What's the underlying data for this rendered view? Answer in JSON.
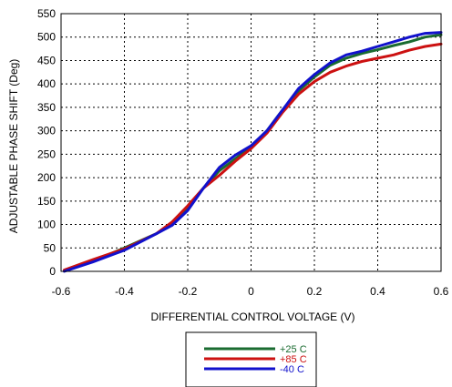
{
  "chart_data": {
    "type": "line",
    "title": "",
    "xlabel": "DIFFERENTIAL CONTROL VOLTAGE (V)",
    "ylabel": "ADJUSTABLE PHASE SHIFT (Deg)",
    "xlim": [
      -0.6,
      0.6
    ],
    "ylim": [
      0,
      550
    ],
    "xticks": [
      -0.6,
      -0.4,
      -0.2,
      0,
      0.2,
      0.4,
      0.6
    ],
    "xtick_labels": [
      "-0.6",
      "-0.4",
      "-0.2",
      "0",
      "0.2",
      "0.4",
      "0.6"
    ],
    "yticks": [
      0,
      50,
      100,
      150,
      200,
      250,
      300,
      350,
      400,
      450,
      500,
      550
    ],
    "ytick_labels": [
      "0",
      "50",
      "100",
      "150",
      "200",
      "250",
      "300",
      "350",
      "400",
      "450",
      "500",
      "550"
    ],
    "grid": "dotted",
    "legend_position": "bottom-center",
    "series": [
      {
        "name": "+25 C",
        "color": "#1a6b30",
        "x": [
          -0.59,
          -0.5,
          -0.4,
          -0.3,
          -0.25,
          -0.2,
          -0.15,
          -0.1,
          -0.05,
          0,
          0.05,
          0.1,
          0.15,
          0.2,
          0.25,
          0.3,
          0.35,
          0.4,
          0.45,
          0.5,
          0.55,
          0.6
        ],
        "y": [
          2,
          22,
          50,
          80,
          100,
          137,
          178,
          215,
          240,
          265,
          300,
          345,
          385,
          415,
          440,
          455,
          465,
          473,
          482,
          490,
          500,
          505
        ]
      },
      {
        "name": "+85 C",
        "color": "#cc1111",
        "x": [
          -0.59,
          -0.5,
          -0.4,
          -0.3,
          -0.25,
          -0.2,
          -0.15,
          -0.1,
          -0.05,
          0,
          0.05,
          0.1,
          0.15,
          0.2,
          0.25,
          0.3,
          0.35,
          0.4,
          0.45,
          0.5,
          0.55,
          0.6
        ],
        "y": [
          3,
          25,
          48,
          80,
          105,
          140,
          178,
          205,
          235,
          262,
          295,
          340,
          378,
          405,
          425,
          438,
          448,
          455,
          462,
          472,
          480,
          485
        ]
      },
      {
        "name": "-40 C",
        "color": "#1111cc",
        "x": [
          -0.59,
          -0.5,
          -0.4,
          -0.3,
          -0.25,
          -0.2,
          -0.15,
          -0.1,
          -0.05,
          0,
          0.05,
          0.1,
          0.15,
          0.2,
          0.25,
          0.3,
          0.35,
          0.4,
          0.45,
          0.5,
          0.55,
          0.6
        ],
        "y": [
          0,
          20,
          45,
          80,
          98,
          130,
          178,
          222,
          248,
          268,
          300,
          345,
          390,
          420,
          445,
          462,
          470,
          480,
          490,
          500,
          508,
          510
        ]
      }
    ]
  }
}
